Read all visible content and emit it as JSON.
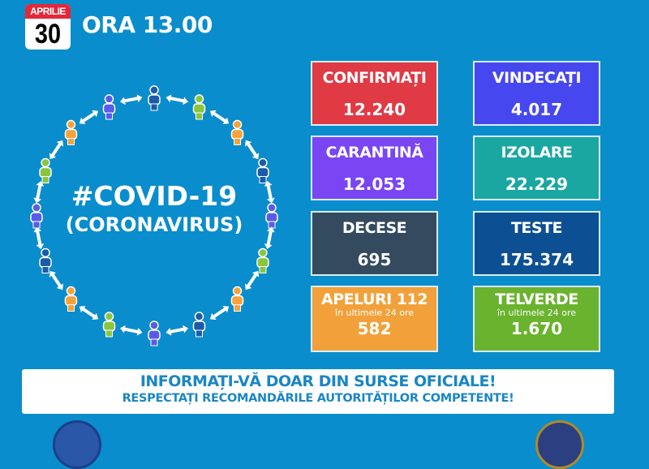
{
  "date": {
    "month": "APRILIE",
    "day": "30"
  },
  "time": "ORA 13.00",
  "hashtag": {
    "title": "#COVID-19",
    "subtitle": "(CORONAVIRUS)"
  },
  "stats": [
    {
      "label": "CONFIRMAȚI",
      "value": "12.240",
      "color": "#e03a45"
    },
    {
      "label": "VINDECAȚI",
      "value": "4.017",
      "color": "#4747f0"
    },
    {
      "label": "CARANTINĂ",
      "value": "12.053",
      "color": "#7a45f2"
    },
    {
      "label": "IZOLARE",
      "value": "22.229",
      "color": "#1aa7a2"
    },
    {
      "label": "DECESE",
      "value": "695",
      "color": "#344a5e"
    },
    {
      "label": "TESTE",
      "value": "175.374",
      "color": "#0d4f93"
    },
    {
      "label": "APELURI 112",
      "sub": "în ultimele 24 ore",
      "value": "582",
      "color": "#f2a13a"
    },
    {
      "label": "TELVERDE",
      "sub": "în ultimele 24 ore",
      "value": "1.670",
      "color": "#6ab32e"
    }
  ],
  "banner": {
    "line1": "INFORMAȚI-VĂ DOAR DIN SURSE OFICIALE!",
    "line2": "RESPECTAȚI RECOMANDĂRILE AUTORITĂȚILOR COMPETENTE!"
  },
  "people_colors": [
    "#1d5aa8",
    "#8bc53f",
    "#f7a23b",
    "#1d5aa8",
    "#5a5ae8",
    "#8bc53f",
    "#f7a23b",
    "#1d5aa8",
    "#5a5ae8",
    "#8bc53f",
    "#f7a23b",
    "#1d5aa8",
    "#5a5ae8",
    "#8bc53f",
    "#f7a23b",
    "#5a5ae8"
  ]
}
